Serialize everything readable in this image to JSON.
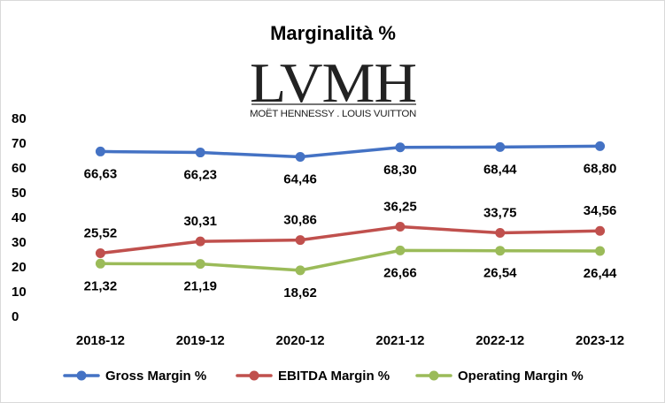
{
  "chart_data": {
    "type": "line",
    "title": "Marginalità %",
    "logo": {
      "main": "LVMH",
      "sub": "MOËT HENNESSY . LOUIS VUITTON"
    },
    "categories": [
      "2018-12",
      "2019-12",
      "2020-12",
      "2021-12",
      "2022-12",
      "2023-12"
    ],
    "ylim": [
      0,
      80
    ],
    "yticks": [
      0,
      10,
      20,
      30,
      40,
      50,
      60,
      70,
      80
    ],
    "grid": false,
    "legend_position": "bottom",
    "series": [
      {
        "name": "Gross Margin %",
        "color": "#4472C4",
        "values": [
          66.63,
          66.23,
          64.46,
          68.3,
          68.44,
          68.8
        ],
        "labels": [
          "66,63",
          "66,23",
          "64,46",
          "68,30",
          "68,44",
          "68,80"
        ],
        "label_position": "below"
      },
      {
        "name": "EBITDA Margin %",
        "color": "#C0504D",
        "values": [
          25.52,
          30.31,
          30.86,
          36.25,
          33.75,
          34.56
        ],
        "labels": [
          "25,52",
          "30,31",
          "30,86",
          "36,25",
          "33,75",
          "34,56"
        ],
        "label_position": "above"
      },
      {
        "name": "Operating Margin %",
        "color": "#9BBB59",
        "values": [
          21.32,
          21.19,
          18.62,
          26.66,
          26.54,
          26.44
        ],
        "labels": [
          "21,32",
          "21,19",
          "18,62",
          "26,66",
          "26,54",
          "26,44"
        ],
        "label_position": "below"
      }
    ]
  }
}
